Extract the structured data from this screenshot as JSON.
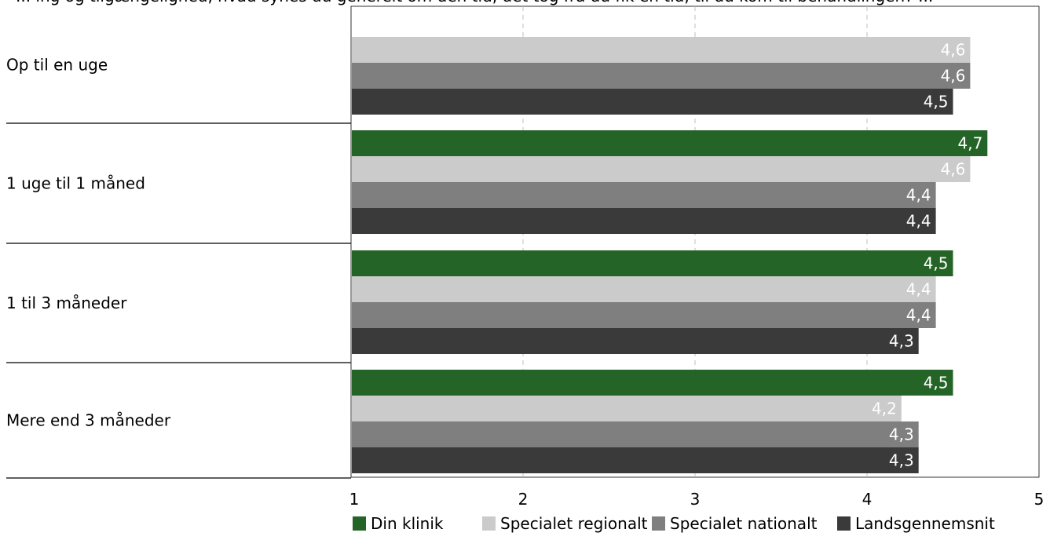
{
  "chart_data": {
    "type": "bar",
    "orientation": "horizontal",
    "title_fragment": "... ing og tilgængelighed, hvad synes du generelt om den tid, det tog fra du fik en tid, til du kom til behandlingen? ...",
    "categories": [
      "Op til en uge",
      "1 uge til 1 måned",
      "1 til 3 måneder",
      "Mere end 3 måneder"
    ],
    "series": [
      {
        "name": "Din klinik",
        "color": "#256427",
        "label_color": "#ffffff",
        "values": [
          null,
          4.7,
          4.5,
          4.5
        ],
        "labels": [
          "",
          "4,7",
          "4,5",
          "4,5"
        ]
      },
      {
        "name": "Specialet regionalt",
        "color": "#cbcbcb",
        "label_color": "#ffffff",
        "values": [
          4.6,
          4.6,
          4.4,
          4.2
        ],
        "labels": [
          "4,6",
          "4,6",
          "4,4",
          "4,2"
        ]
      },
      {
        "name": "Specialet nationalt",
        "color": "#7f7f7f",
        "label_color": "#ffffff",
        "values": [
          4.6,
          4.4,
          4.4,
          4.3
        ],
        "labels": [
          "4,6",
          "4,4",
          "4,4",
          "4,3"
        ]
      },
      {
        "name": "Landsgennemsnit",
        "color": "#3a3a3a",
        "label_color": "#ffffff",
        "values": [
          4.5,
          4.4,
          4.3,
          4.3
        ],
        "labels": [
          "4,5",
          "4,4",
          "4,3",
          "4,3"
        ]
      }
    ],
    "xlim": [
      1,
      5
    ],
    "xticks": [
      "1",
      "2",
      "3",
      "4",
      "5"
    ],
    "grid": "vertical dashed",
    "legend_position": "bottom-right"
  }
}
